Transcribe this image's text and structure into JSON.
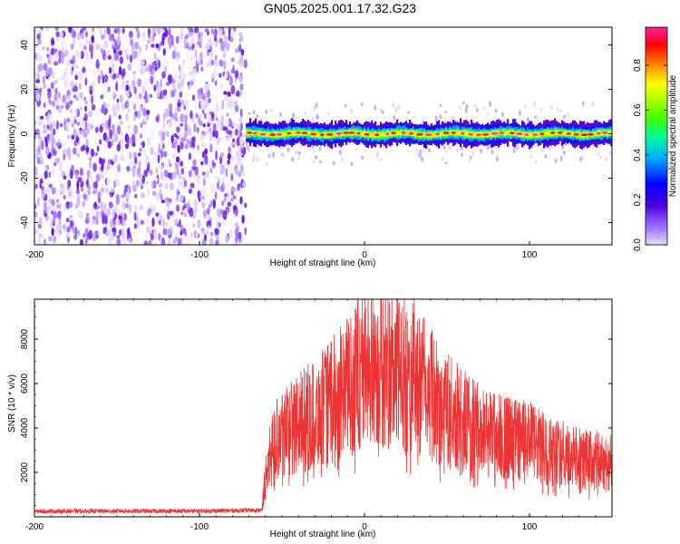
{
  "title": "GN05.2025.001.17.32.G23",
  "chart_data": [
    {
      "type": "heatmap",
      "xlabel": "Height of straight line (km)",
      "ylabel": "Frequency (Hz)",
      "xlim": [
        -200,
        150
      ],
      "ylim": [
        -50,
        48
      ],
      "xticks": [
        -200,
        -100,
        0,
        100
      ],
      "yticks": [
        -40,
        -20,
        0,
        20,
        40
      ],
      "noise_region_x": [
        -200,
        -72
      ],
      "signal_start_x": -72,
      "signal_center_hz": 0,
      "signal_halfwidth_hz": 4,
      "colorbar": {
        "label": "Normalized spectral amplitude",
        "ticks": [
          0.0,
          0.2,
          0.4,
          0.6,
          0.8
        ],
        "range": [
          0,
          0.97
        ],
        "colormap": "rainbow (magenta-purple-blue-cyan-green-yellow-red-pink)"
      }
    },
    {
      "type": "line",
      "xlabel": "Height of straight line (km)",
      "ylabel": "SNR (10 * v/v)",
      "xlim": [
        -200,
        150
      ],
      "ylim": [
        0,
        9800
      ],
      "xticks": [
        -200,
        -100,
        0,
        100
      ],
      "yticks": [
        2000,
        4000,
        6000,
        8000
      ],
      "color": "#ee3333",
      "envelope": {
        "x": [
          -200,
          -100,
          -62,
          -60,
          -55,
          -50,
          -40,
          -30,
          -20,
          -10,
          0,
          10,
          20,
          30,
          40,
          50,
          60,
          70,
          80,
          90,
          100,
          110,
          120,
          130,
          140,
          150
        ],
        "y": [
          250,
          260,
          300,
          1800,
          3400,
          3900,
          4200,
          4600,
          5200,
          5800,
          6600,
          6800,
          6400,
          6300,
          5500,
          4800,
          4300,
          3900,
          3700,
          3500,
          3400,
          3000,
          2800,
          2600,
          2500,
          2400
        ]
      },
      "peak": {
        "x": -4,
        "y": 9800
      }
    }
  ]
}
